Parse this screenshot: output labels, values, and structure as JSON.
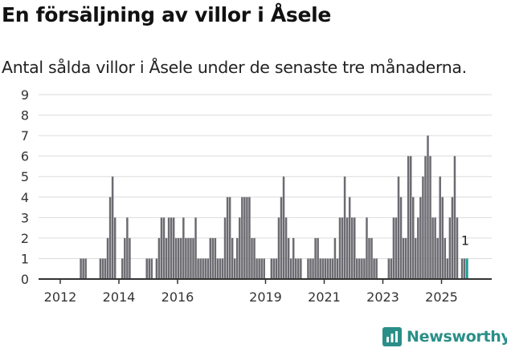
{
  "chart_data": {
    "type": "bar",
    "title": "En försäljning av villor i Åsele",
    "subtitle": "Antal sålda villor i Åsele under de senaste tre månaderna.",
    "xlabel": "",
    "ylabel": "",
    "start_month": "2011-04",
    "interval": "month",
    "ylim": [
      0,
      9
    ],
    "yticks": [
      0,
      1,
      2,
      3,
      4,
      5,
      6,
      7,
      8,
      9
    ],
    "xtick_labels": [
      "2012",
      "2014",
      "2016",
      "2019",
      "2021",
      "2023",
      "2025"
    ],
    "grid": true,
    "values": [
      0,
      0,
      0,
      0,
      0,
      0,
      0,
      0,
      0,
      0,
      0,
      0,
      0,
      0,
      0,
      0,
      0,
      1,
      1,
      1,
      0,
      0,
      0,
      0,
      0,
      1,
      1,
      1,
      2,
      4,
      5,
      3,
      0,
      0,
      1,
      2,
      3,
      2,
      0,
      0,
      0,
      0,
      0,
      0,
      1,
      1,
      1,
      0,
      1,
      2,
      3,
      3,
      2,
      3,
      3,
      3,
      2,
      2,
      2,
      3,
      2,
      2,
      2,
      2,
      3,
      1,
      1,
      1,
      1,
      1,
      2,
      2,
      2,
      1,
      1,
      1,
      3,
      4,
      4,
      2,
      1,
      2,
      3,
      4,
      4,
      4,
      4,
      2,
      2,
      1,
      1,
      1,
      1,
      0,
      0,
      1,
      1,
      1,
      3,
      4,
      5,
      3,
      2,
      1,
      2,
      1,
      1,
      1,
      0,
      0,
      1,
      1,
      1,
      2,
      2,
      1,
      1,
      1,
      1,
      1,
      1,
      2,
      1,
      3,
      3,
      5,
      3,
      4,
      3,
      3,
      1,
      1,
      1,
      1,
      3,
      2,
      2,
      1,
      1,
      0,
      0,
      0,
      0,
      1,
      1,
      3,
      3,
      5,
      4,
      2,
      2,
      6,
      6,
      4,
      2,
      3,
      4,
      5,
      6,
      7,
      6,
      3,
      3,
      2,
      5,
      4,
      2,
      1,
      3,
      4,
      6,
      3,
      0,
      1,
      1,
      1
    ],
    "highlight_last_label": "1",
    "colors": {
      "bar": "#6c6b71",
      "highlight": "#1f9e95",
      "grid": "#dcdcdc",
      "axis": "#333333"
    }
  },
  "brand": {
    "name": "Newsworthy",
    "color": "#2a8f88"
  }
}
